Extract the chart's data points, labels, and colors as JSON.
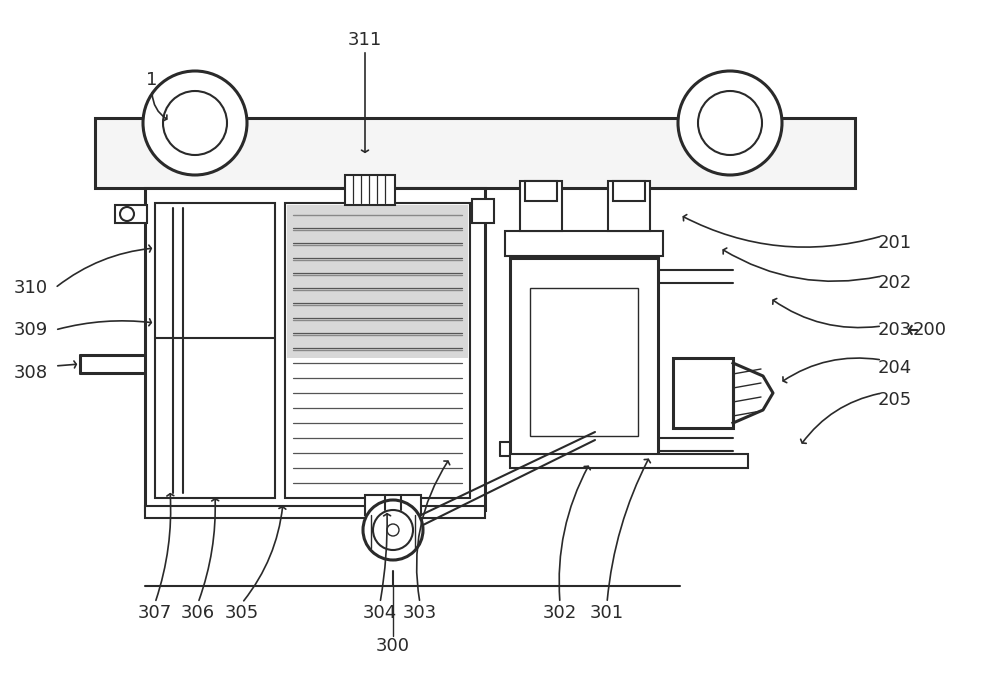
{
  "bg_color": "#ffffff",
  "line_color": "#2a2a2a",
  "lw_thin": 1.0,
  "lw_med": 1.5,
  "lw_thick": 2.2,
  "fs": 13,
  "fs_small": 11
}
